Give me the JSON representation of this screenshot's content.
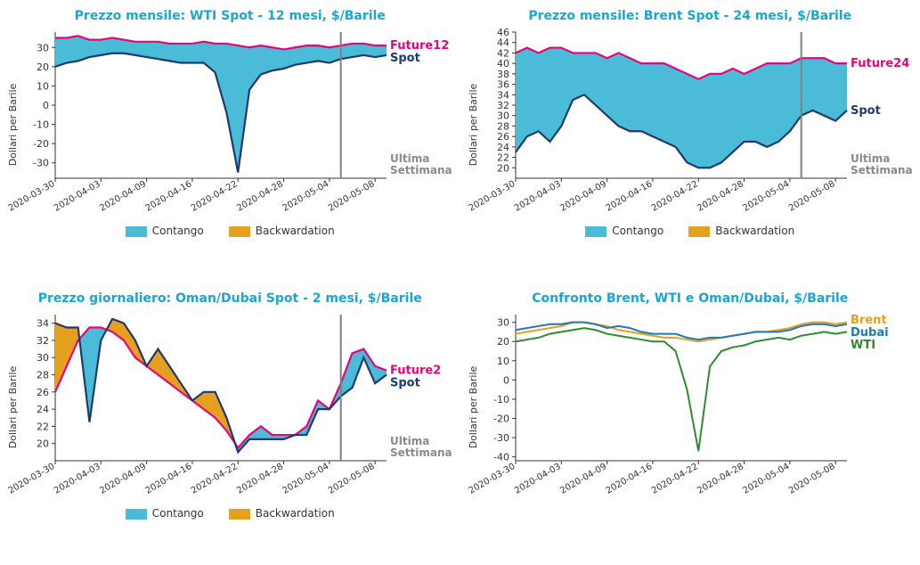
{
  "x_dates": [
    "2020-03-30",
    "2020-04-03",
    "2020-04-09",
    "2020-04-16",
    "2020-04-22",
    "2020-04-28",
    "2020-05-04",
    "2020-05-08"
  ],
  "x_positions": [
    0,
    4,
    8,
    12,
    16,
    20,
    24,
    28
  ],
  "x_domain": [
    0,
    29
  ],
  "last_week_x": 25,
  "colors": {
    "title": "#1aa6d1",
    "future_line": "#e6057a",
    "spot_line": "#1f3a6e",
    "contango_fill": "#4bbcd8",
    "backwardation_fill": "#e6a01f",
    "vline": "#808080",
    "gray_text": "#8a8a8a",
    "axis": "#333333",
    "brent": "#e6a01f",
    "dubai": "#1f78b4",
    "wti": "#2e8b2e"
  },
  "chart1": {
    "title": "Prezzo mensile: WTI Spot - 12 mesi, $/Barile",
    "ylabel": "Dollari per Barile",
    "future_label": "Future12",
    "spot_label": "Spot",
    "yticks": [
      -30,
      -20,
      -10,
      0,
      10,
      20,
      30
    ],
    "ylim": [
      -38,
      38
    ],
    "future": [
      35,
      35,
      36,
      34,
      34,
      35,
      34,
      33,
      33,
      33,
      32,
      32,
      32,
      33,
      32,
      32,
      31,
      30,
      31,
      30,
      29,
      30,
      31,
      31,
      30,
      31,
      32,
      32,
      31,
      31
    ],
    "spot": [
      20,
      22,
      23,
      25,
      26,
      27,
      27,
      26,
      25,
      24,
      23,
      22,
      22,
      22,
      17,
      -4,
      -35,
      8,
      16,
      18,
      19,
      21,
      22,
      23,
      22,
      24,
      25,
      26,
      25,
      26
    ],
    "legend": {
      "contango": "Contango",
      "backwardation": "Backwardation"
    },
    "last_week": "Ultima\nSettimana"
  },
  "chart2": {
    "title": "Prezzo mensile: Brent Spot - 24 mesi, $/Barile",
    "ylabel": "Dollari per Barile",
    "future_label": "Future24",
    "spot_label": "Spot",
    "yticks": [
      20,
      22,
      24,
      26,
      28,
      30,
      32,
      34,
      36,
      38,
      40,
      42,
      44,
      46
    ],
    "ylim": [
      18,
      46
    ],
    "future": [
      42,
      43,
      42,
      43,
      43,
      42,
      42,
      42,
      41,
      42,
      41,
      40,
      40,
      40,
      39,
      38,
      37,
      38,
      38,
      39,
      38,
      39,
      40,
      40,
      40,
      41,
      41,
      41,
      40,
      40
    ],
    "spot": [
      23,
      26,
      27,
      25,
      28,
      33,
      34,
      32,
      30,
      28,
      27,
      27,
      26,
      25,
      24,
      21,
      20,
      20,
      21,
      23,
      25,
      25,
      24,
      25,
      27,
      30,
      31,
      30,
      29,
      31
    ],
    "legend": {
      "contango": "Contango",
      "backwardation": "Backwardation"
    },
    "last_week": "Ultima\nSettimana"
  },
  "chart3": {
    "title": "Prezzo giornaliero: Oman/Dubai Spot - 2 mesi, $/Barile",
    "ylabel": "Dollari per Barile",
    "future_label": "Future2",
    "spot_label": "Spot",
    "yticks": [
      20,
      22,
      24,
      26,
      28,
      30,
      32,
      34
    ],
    "ylim": [
      18,
      35
    ],
    "future": [
      26,
      29,
      32,
      33.5,
      33.5,
      33,
      32,
      30,
      29,
      28,
      27,
      26,
      25,
      24,
      23,
      21.5,
      19.5,
      21,
      22,
      21,
      21,
      21,
      22,
      25,
      24,
      27,
      30.5,
      31,
      29,
      28.5
    ],
    "spot": [
      34,
      33.5,
      33.5,
      22.5,
      32,
      34.5,
      34,
      32,
      29,
      31,
      29,
      27,
      25,
      26,
      26,
      23,
      19,
      20.5,
      20.5,
      20.5,
      20.5,
      21,
      21,
      24,
      24,
      25.5,
      26.5,
      30,
      27,
      28
    ],
    "legend": {
      "contango": "Contango",
      "backwardation": "Backwardation"
    },
    "last_week": "Ultima\nSettimana"
  },
  "chart4": {
    "title": "Confronto Brent, WTI e Oman/Dubai, $/Barile",
    "ylabel": "Dollari per Barile",
    "yticks": [
      -40,
      -30,
      -20,
      -10,
      0,
      10,
      20,
      30
    ],
    "ylim": [
      -42,
      34
    ],
    "brent_label": "Brent",
    "dubai_label": "Dubai",
    "wti_label": "WTI",
    "brent": [
      24,
      25,
      26,
      27,
      28,
      30,
      30,
      29,
      28,
      26,
      25,
      24,
      23,
      22,
      22,
      21,
      20,
      21,
      22,
      23,
      24,
      25,
      25,
      26,
      27,
      29,
      30,
      30,
      29,
      30
    ],
    "dubai": [
      26,
      27,
      28,
      29,
      29,
      30,
      30,
      29,
      27,
      28,
      27,
      25,
      24,
      24,
      24,
      22,
      21,
      22,
      22,
      23,
      24,
      25,
      25,
      25,
      26,
      28,
      29,
      29,
      28,
      29
    ],
    "wti": [
      20,
      21,
      22,
      24,
      25,
      26,
      27,
      26,
      24,
      23,
      22,
      21,
      20,
      20,
      15,
      -5,
      -37,
      7,
      15,
      17,
      18,
      20,
      21,
      22,
      21,
      23,
      24,
      25,
      24,
      25
    ]
  }
}
